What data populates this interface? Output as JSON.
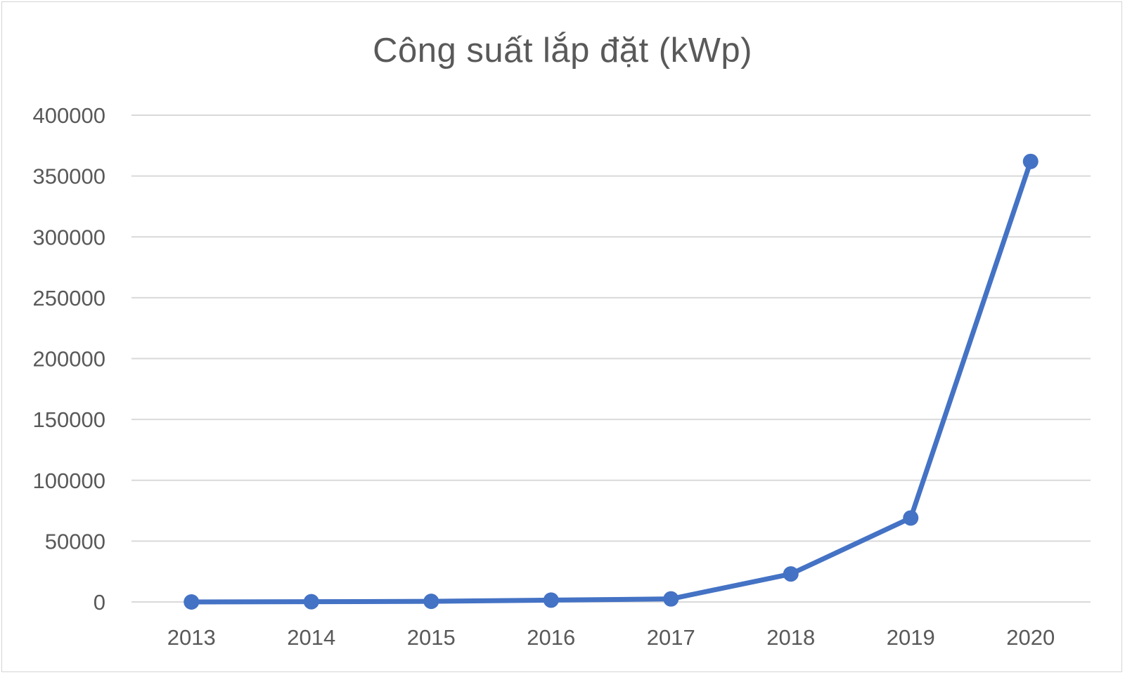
{
  "chart_data": {
    "type": "line",
    "title": "Công suất lắp đặt (kWp)",
    "xlabel": "",
    "ylabel": "",
    "categories": [
      "2013",
      "2014",
      "2015",
      "2016",
      "2017",
      "2018",
      "2019",
      "2020"
    ],
    "series": [
      {
        "values": [
          0,
          200,
          500,
          1500,
          2500,
          23000,
          69000,
          362000
        ]
      }
    ],
    "ylim": [
      0,
      400000
    ],
    "yticks": [
      "0",
      "50000",
      "100000",
      "150000",
      "200000",
      "250000",
      "300000",
      "350000",
      "400000"
    ],
    "grid": true,
    "legend": "none",
    "colors": {
      "series": "#4472c4",
      "grid": "#d9d9d9",
      "text": "#595959"
    }
  }
}
